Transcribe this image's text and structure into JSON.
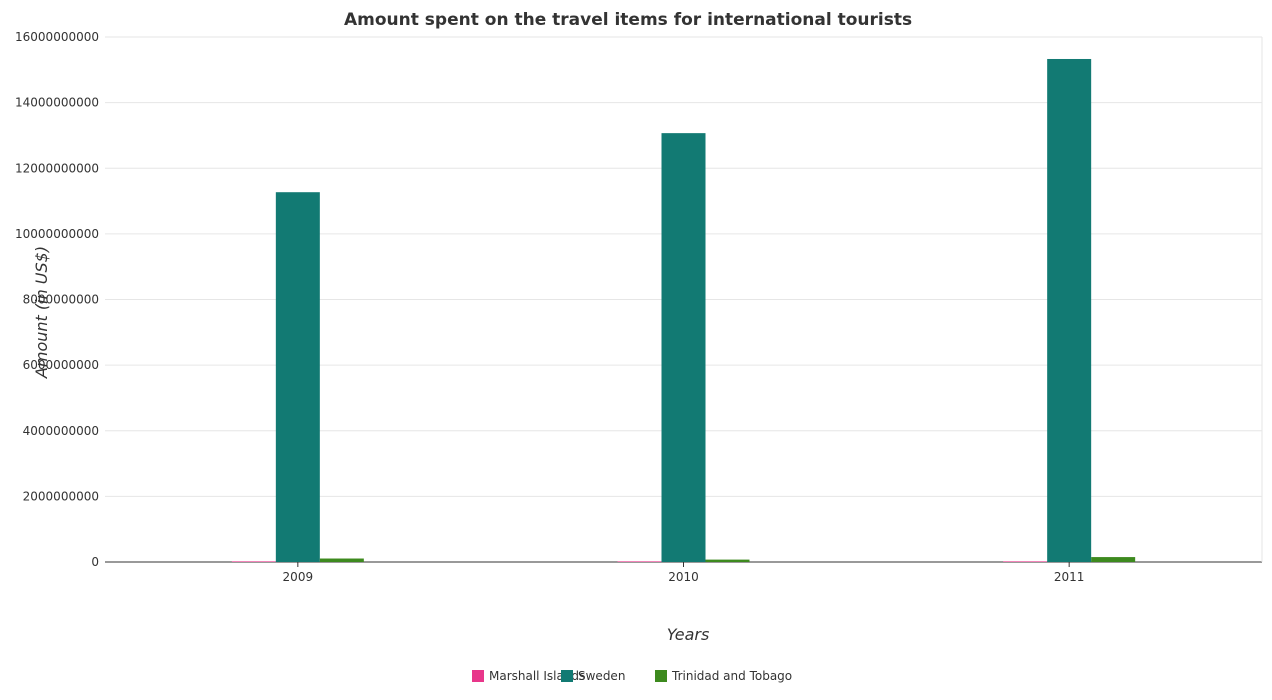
{
  "chart_data": {
    "type": "bar",
    "title": "Amount spent on the travel items for international tourists",
    "xlabel": "Years",
    "ylabel": "Amount (in US$)",
    "categories": [
      "2009",
      "2010",
      "2011"
    ],
    "ylim": [
      0,
      16000000000
    ],
    "yticks": [
      0,
      2000000000,
      4000000000,
      6000000000,
      8000000000,
      10000000000,
      12000000000,
      14000000000,
      16000000000
    ],
    "ytick_labels": [
      "0",
      "2000000000",
      "4000000000",
      "6000000000",
      "8000000000",
      "10000000000",
      "12000000000",
      "14000000000",
      "16000000000"
    ],
    "grid": true,
    "legend_position": "bottom",
    "series": [
      {
        "name": "Marshall Islands",
        "color": "#e8368a",
        "values": [
          1500000,
          1500000,
          1500000
        ]
      },
      {
        "name": "Sweden",
        "color": "#127a73",
        "values": [
          11270000000,
          13070000000,
          15330000000
        ]
      },
      {
        "name": "Trinidad and Tobago",
        "color": "#3d8a1e",
        "values": [
          106000000,
          73000000,
          150000000
        ]
      }
    ]
  }
}
